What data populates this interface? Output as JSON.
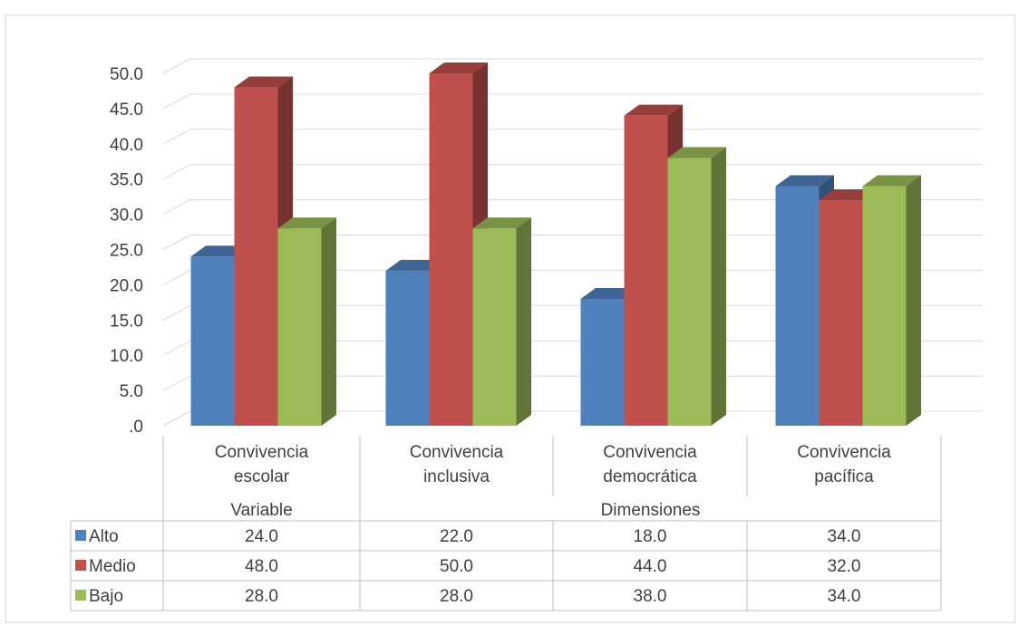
{
  "chart_data": {
    "type": "bar",
    "three_d": true,
    "categories": [
      [
        "Convivencia",
        "escolar"
      ],
      [
        "Convivencia",
        "inclusiva"
      ],
      [
        "Convivencia",
        "democrática"
      ],
      [
        "Convivencia",
        "pacífica"
      ]
    ],
    "groups": [
      {
        "label": "Variable",
        "span": 1
      },
      {
        "label": "Dimensiones",
        "span": 3
      }
    ],
    "series": [
      {
        "name": "Alto",
        "values": [
          24.0,
          22.0,
          18.0,
          34.0
        ],
        "color": "#4F81BD"
      },
      {
        "name": "Medio",
        "values": [
          48.0,
          50.0,
          44.0,
          32.0
        ],
        "color": "#C0504D"
      },
      {
        "name": "Bajo",
        "values": [
          28.0,
          28.0,
          38.0,
          34.0
        ],
        "color": "#9BBB59"
      }
    ],
    "ylim": [
      0,
      50
    ],
    "yticks": [
      ".0",
      "5.0",
      "10.0",
      "15.0",
      "20.0",
      "25.0",
      "30.0",
      "35.0",
      "40.0",
      "45.0",
      "50.0"
    ],
    "grid": true,
    "legend": "data-table",
    "data_table": true
  }
}
